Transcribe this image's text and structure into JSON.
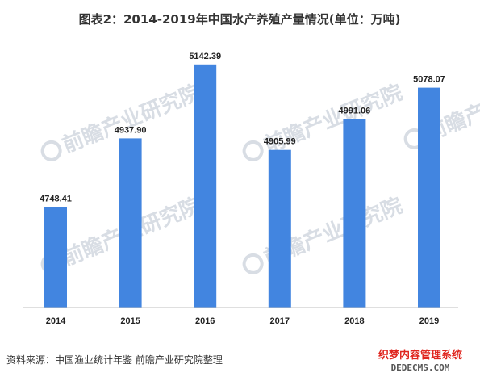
{
  "chart_data": {
    "type": "bar",
    "title": "图表2：2014-2019年中国水产养殖产量情况(单位：万吨)",
    "categories": [
      "2014",
      "2015",
      "2016",
      "2017",
      "2018",
      "2019"
    ],
    "values": [
      4748.41,
      4937.9,
      5142.39,
      4905.99,
      4991.06,
      5078.07
    ],
    "value_labels": [
      "4748.41",
      "4937.90",
      "5142.39",
      "4905.99",
      "4991.06",
      "5078.07"
    ],
    "bar_color": "#4285e0",
    "ylim": [
      4470,
      5200
    ],
    "grid": false,
    "legend": "none"
  },
  "source": "资料来源：中国渔业统计年鉴 前瞻产业研究院整理",
  "watermark": {
    "text": "前瞻产业研究院",
    "color": "#d8dde4"
  },
  "site_mark": {
    "top": "织梦内容管理系统",
    "bottom": "DEDECMS.COM"
  }
}
